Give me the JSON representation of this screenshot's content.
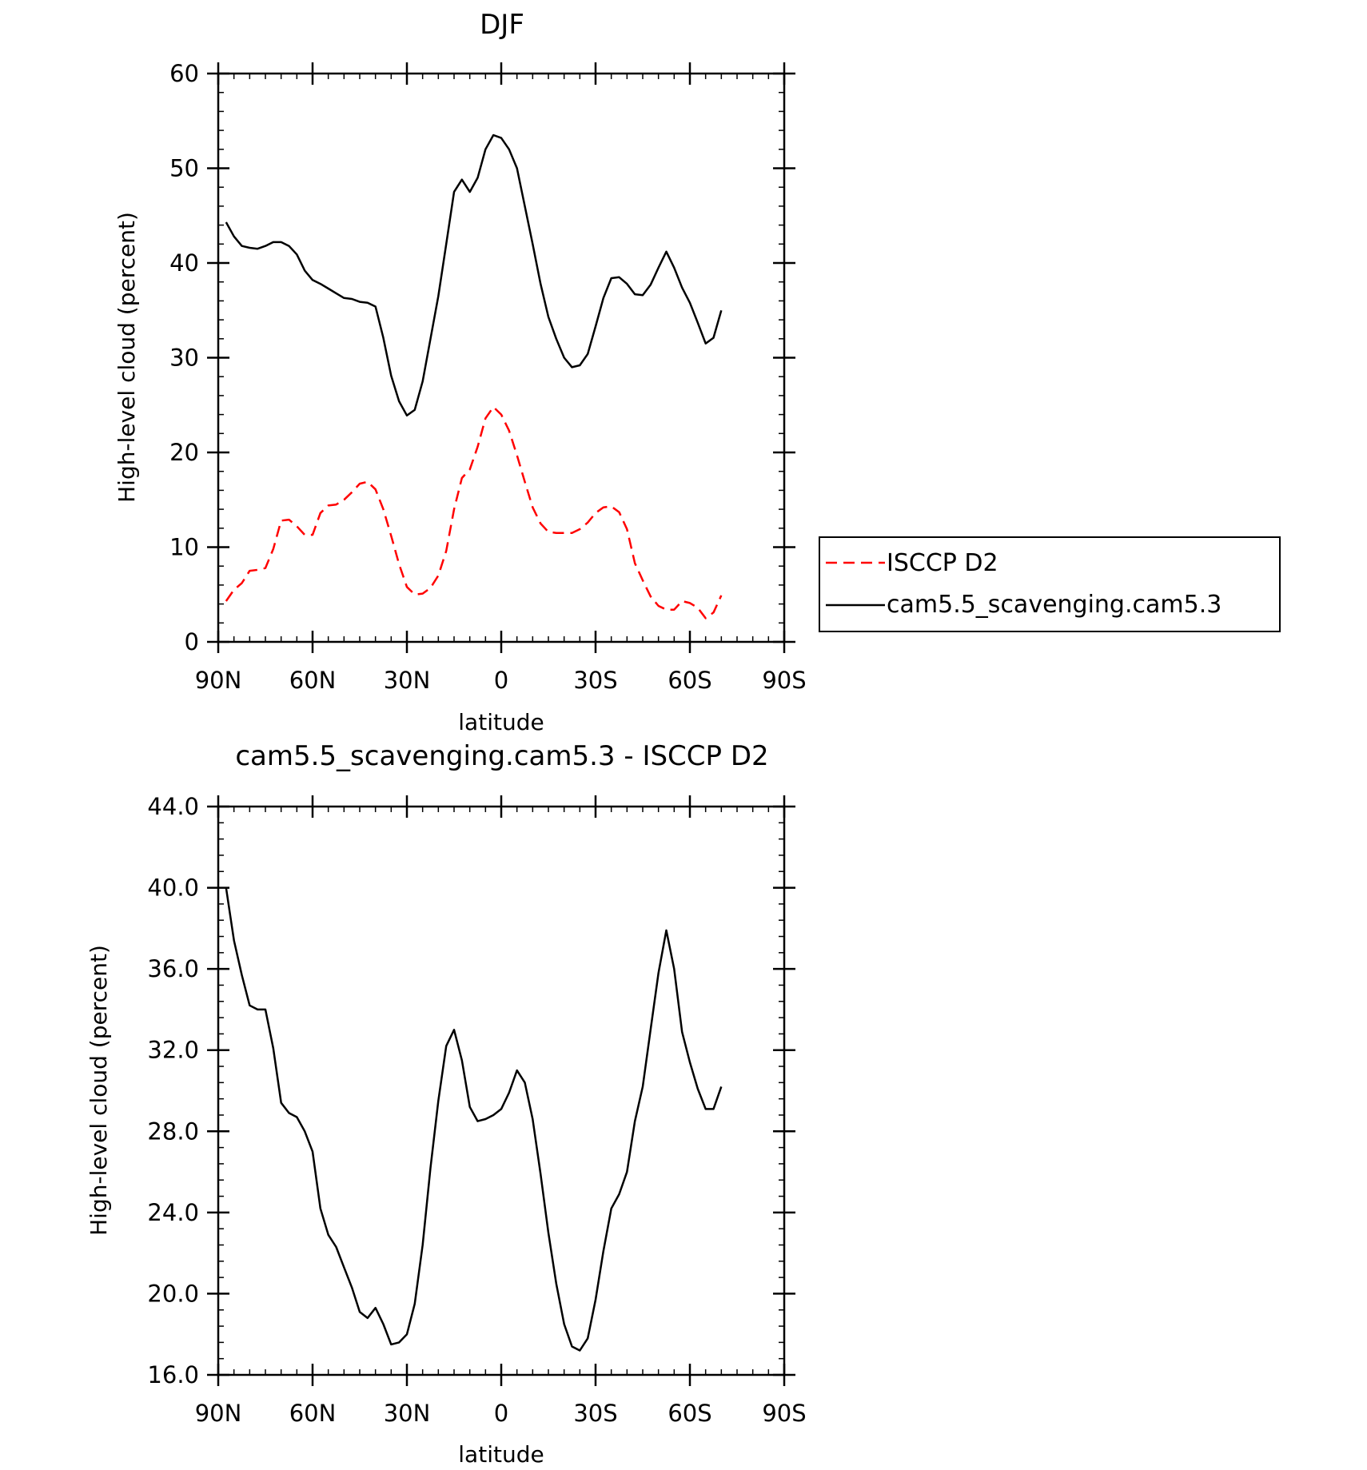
{
  "chart_data": [
    {
      "type": "line",
      "title": "DJF",
      "xlabel": "latitude",
      "ylabel": "High-level cloud (percent)",
      "xlim": [
        90,
        -90
      ],
      "ylim": [
        0,
        60
      ],
      "xticks": [
        {
          "value": 90,
          "label": "90N"
        },
        {
          "value": 60,
          "label": "60N"
        },
        {
          "value": 30,
          "label": "30N"
        },
        {
          "value": 0,
          "label": "0"
        },
        {
          "value": -30,
          "label": "30S"
        },
        {
          "value": -60,
          "label": "60S"
        },
        {
          "value": -90,
          "label": "90S"
        }
      ],
      "yticks": [
        {
          "value": 0,
          "label": "0"
        },
        {
          "value": 10,
          "label": "10"
        },
        {
          "value": 20,
          "label": "20"
        },
        {
          "value": 30,
          "label": "30"
        },
        {
          "value": 40,
          "label": "40"
        },
        {
          "value": 50,
          "label": "50"
        },
        {
          "value": 60,
          "label": "60"
        }
      ],
      "legend": {
        "position": "right"
      },
      "series": [
        {
          "name": "ISCCP D2",
          "color": "#ff0000",
          "dash": "dashed",
          "points": [
            [
              87.5,
              4.3
            ],
            [
              85,
              5.5
            ],
            [
              82.5,
              6.2
            ],
            [
              80,
              7.5
            ],
            [
              77.5,
              7.6
            ],
            [
              75,
              7.8
            ],
            [
              72.5,
              9.8
            ],
            [
              70,
              12.8
            ],
            [
              67.5,
              12.9
            ],
            [
              65,
              12.2
            ],
            [
              62.5,
              11.3
            ],
            [
              60,
              11.3
            ],
            [
              57.5,
              13.6
            ],
            [
              55,
              14.4
            ],
            [
              52.5,
              14.5
            ],
            [
              50,
              15.0
            ],
            [
              47.5,
              15.8
            ],
            [
              45,
              16.7
            ],
            [
              42.5,
              16.9
            ],
            [
              40,
              16.1
            ],
            [
              37.5,
              14.0
            ],
            [
              35,
              11.2
            ],
            [
              32.5,
              8.2
            ],
            [
              30,
              5.8
            ],
            [
              27.5,
              5.0
            ],
            [
              25,
              5.1
            ],
            [
              22.5,
              5.7
            ],
            [
              20,
              7.0
            ],
            [
              17.5,
              9.6
            ],
            [
              15,
              14.0
            ],
            [
              12.5,
              17.3
            ],
            [
              10,
              18.2
            ],
            [
              7.5,
              20.6
            ],
            [
              5,
              23.6
            ],
            [
              2.5,
              24.8
            ],
            [
              0,
              24.0
            ],
            [
              -2.5,
              22.3
            ],
            [
              -5,
              19.7
            ],
            [
              -7.5,
              16.9
            ],
            [
              -10,
              14.2
            ],
            [
              -12.5,
              12.5
            ],
            [
              -15,
              11.6
            ],
            [
              -17.5,
              11.5
            ],
            [
              -20,
              11.5
            ],
            [
              -22.5,
              11.5
            ],
            [
              -25,
              11.9
            ],
            [
              -27.5,
              12.6
            ],
            [
              -30,
              13.6
            ],
            [
              -32.5,
              14.2
            ],
            [
              -35,
              14.3
            ],
            [
              -37.5,
              13.7
            ],
            [
              -40,
              11.9
            ],
            [
              -42.5,
              8.3
            ],
            [
              -45,
              6.5
            ],
            [
              -47.5,
              4.8
            ],
            [
              -50,
              3.8
            ],
            [
              -52.5,
              3.4
            ],
            [
              -55,
              3.4
            ],
            [
              -57.5,
              4.3
            ],
            [
              -60,
              4.1
            ],
            [
              -62.5,
              3.6
            ],
            [
              -65,
              2.5
            ],
            [
              -67.5,
              3.1
            ],
            [
              -70,
              4.9
            ]
          ]
        },
        {
          "name": "cam5.5_scavenging.cam5.3",
          "color": "#000000",
          "dash": "solid",
          "points": [
            [
              87.5,
              44.3
            ],
            [
              85,
              42.8
            ],
            [
              82.5,
              41.8
            ],
            [
              80,
              41.6
            ],
            [
              77.5,
              41.5
            ],
            [
              75,
              41.8
            ],
            [
              72.5,
              42.2
            ],
            [
              70,
              42.2
            ],
            [
              67.5,
              41.8
            ],
            [
              65,
              40.9
            ],
            [
              62.5,
              39.2
            ],
            [
              60,
              38.2
            ],
            [
              57.5,
              37.8
            ],
            [
              55,
              37.3
            ],
            [
              52.5,
              36.8
            ],
            [
              50,
              36.3
            ],
            [
              47.5,
              36.2
            ],
            [
              45,
              35.9
            ],
            [
              42.5,
              35.8
            ],
            [
              40,
              35.4
            ],
            [
              37.5,
              32.1
            ],
            [
              35,
              28.1
            ],
            [
              32.5,
              25.4
            ],
            [
              30,
              23.9
            ],
            [
              27.5,
              24.5
            ],
            [
              25,
              27.5
            ],
            [
              22.5,
              32.0
            ],
            [
              20,
              36.5
            ],
            [
              17.5,
              42.0
            ],
            [
              15,
              47.5
            ],
            [
              12.5,
              48.8
            ],
            [
              10,
              47.5
            ],
            [
              7.5,
              49.0
            ],
            [
              5,
              52.0
            ],
            [
              2.5,
              53.5
            ],
            [
              0,
              53.2
            ],
            [
              -2.5,
              52.0
            ],
            [
              -5,
              50.0
            ],
            [
              -7.5,
              46.0
            ],
            [
              -10,
              42.0
            ],
            [
              -12.5,
              37.8
            ],
            [
              -15,
              34.3
            ],
            [
              -17.5,
              32.0
            ],
            [
              -20,
              30.0
            ],
            [
              -22.5,
              29.0
            ],
            [
              -25,
              29.2
            ],
            [
              -27.5,
              30.4
            ],
            [
              -30,
              33.3
            ],
            [
              -32.5,
              36.3
            ],
            [
              -35,
              38.4
            ],
            [
              -37.5,
              38.5
            ],
            [
              -40,
              37.8
            ],
            [
              -42.5,
              36.7
            ],
            [
              -45,
              36.6
            ],
            [
              -47.5,
              37.7
            ],
            [
              -50,
              39.5
            ],
            [
              -52.5,
              41.2
            ],
            [
              -55,
              39.5
            ],
            [
              -57.5,
              37.4
            ],
            [
              -60,
              35.8
            ],
            [
              -62.5,
              33.7
            ],
            [
              -65,
              31.5
            ],
            [
              -67.5,
              32.1
            ],
            [
              -70,
              35.0
            ]
          ]
        }
      ]
    },
    {
      "type": "line",
      "title": "cam5.5_scavenging.cam5.3 - ISCCP D2",
      "xlabel": "latitude",
      "ylabel": "High-level cloud (percent)",
      "xlim": [
        90,
        -90
      ],
      "ylim": [
        16,
        44
      ],
      "xticks": [
        {
          "value": 90,
          "label": "90N"
        },
        {
          "value": 60,
          "label": "60N"
        },
        {
          "value": 30,
          "label": "30N"
        },
        {
          "value": 0,
          "label": "0"
        },
        {
          "value": -30,
          "label": "30S"
        },
        {
          "value": -60,
          "label": "60S"
        },
        {
          "value": -90,
          "label": "90S"
        }
      ],
      "yticks": [
        {
          "value": 16,
          "label": "16.0"
        },
        {
          "value": 20,
          "label": "20.0"
        },
        {
          "value": 24,
          "label": "24.0"
        },
        {
          "value": 28,
          "label": "28.0"
        },
        {
          "value": 32,
          "label": "32.0"
        },
        {
          "value": 36,
          "label": "36.0"
        },
        {
          "value": 40,
          "label": "40.0"
        },
        {
          "value": 44,
          "label": "44.0"
        }
      ],
      "series": [
        {
          "color": "#000000",
          "dash": "solid",
          "points": [
            [
              87.5,
              40.0
            ],
            [
              85,
              37.4
            ],
            [
              82.5,
              35.7
            ],
            [
              80,
              34.2
            ],
            [
              77.5,
              34.0
            ],
            [
              75,
              34.0
            ],
            [
              72.5,
              32.1
            ],
            [
              70,
              29.4
            ],
            [
              67.5,
              28.9
            ],
            [
              65,
              28.7
            ],
            [
              62.5,
              28.0
            ],
            [
              60,
              27.0
            ],
            [
              57.5,
              24.2
            ],
            [
              55,
              22.9
            ],
            [
              52.5,
              22.3
            ],
            [
              50,
              21.3
            ],
            [
              47.5,
              20.3
            ],
            [
              45,
              19.1
            ],
            [
              42.5,
              18.8
            ],
            [
              40,
              19.3
            ],
            [
              37.5,
              18.5
            ],
            [
              35,
              17.5
            ],
            [
              32.5,
              17.6
            ],
            [
              30,
              18.0
            ],
            [
              27.5,
              19.5
            ],
            [
              25,
              22.4
            ],
            [
              22.5,
              26.2
            ],
            [
              20,
              29.5
            ],
            [
              17.5,
              32.2
            ],
            [
              15,
              33.0
            ],
            [
              12.5,
              31.5
            ],
            [
              10,
              29.2
            ],
            [
              7.5,
              28.5
            ],
            [
              5,
              28.6
            ],
            [
              2.5,
              28.8
            ],
            [
              0,
              29.1
            ],
            [
              -2.5,
              29.9
            ],
            [
              -5,
              31.0
            ],
            [
              -7.5,
              30.4
            ],
            [
              -10,
              28.6
            ],
            [
              -12.5,
              25.9
            ],
            [
              -15,
              23.0
            ],
            [
              -17.5,
              20.5
            ],
            [
              -20,
              18.5
            ],
            [
              -22.5,
              17.4
            ],
            [
              -25,
              17.2
            ],
            [
              -27.5,
              17.8
            ],
            [
              -30,
              19.7
            ],
            [
              -32.5,
              22.1
            ],
            [
              -35,
              24.2
            ],
            [
              -37.5,
              24.9
            ],
            [
              -40,
              26.0
            ],
            [
              -42.5,
              28.5
            ],
            [
              -45,
              30.2
            ],
            [
              -47.5,
              33.0
            ],
            [
              -50,
              35.8
            ],
            [
              -52.5,
              37.9
            ],
            [
              -55,
              36.0
            ],
            [
              -57.5,
              32.9
            ],
            [
              -60,
              31.4
            ],
            [
              -62.5,
              30.1
            ],
            [
              -65,
              29.1
            ],
            [
              -67.5,
              29.1
            ],
            [
              -70,
              30.2
            ]
          ]
        }
      ]
    }
  ]
}
